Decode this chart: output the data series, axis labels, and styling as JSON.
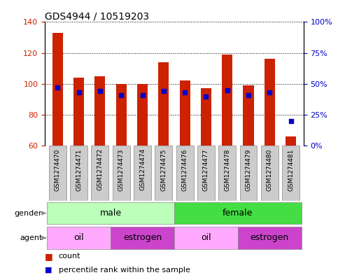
{
  "title": "GDS4944 / 10519203",
  "samples": [
    "GSM1274470",
    "GSM1274471",
    "GSM1274472",
    "GSM1274473",
    "GSM1274474",
    "GSM1274475",
    "GSM1274476",
    "GSM1274477",
    "GSM1274478",
    "GSM1274479",
    "GSM1274480",
    "GSM1274481"
  ],
  "count_values": [
    133,
    104,
    105,
    100,
    100,
    114,
    102,
    97,
    119,
    99,
    116,
    66
  ],
  "percentile_values": [
    47,
    43,
    44,
    41,
    41,
    44,
    43,
    40,
    45,
    41,
    43,
    20
  ],
  "ylim_left": [
    60,
    140
  ],
  "ylim_right": [
    0,
    100
  ],
  "yticks_left": [
    60,
    80,
    100,
    120,
    140
  ],
  "yticks_right": [
    0,
    25,
    50,
    75,
    100
  ],
  "bar_color": "#cc2200",
  "dot_color": "#0000cc",
  "bar_width": 0.5,
  "baseline": 60,
  "gender_colors": {
    "male": "#bbffbb",
    "female": "#44dd44"
  },
  "agent_colors": {
    "oil": "#ffaaff",
    "estrogen": "#cc44cc"
  },
  "grid_color": "#000000",
  "tick_label_color_left": "#cc2200",
  "tick_label_color_right": "#0000cc",
  "label_bg_color": "#cccccc",
  "border_color": "#888888"
}
